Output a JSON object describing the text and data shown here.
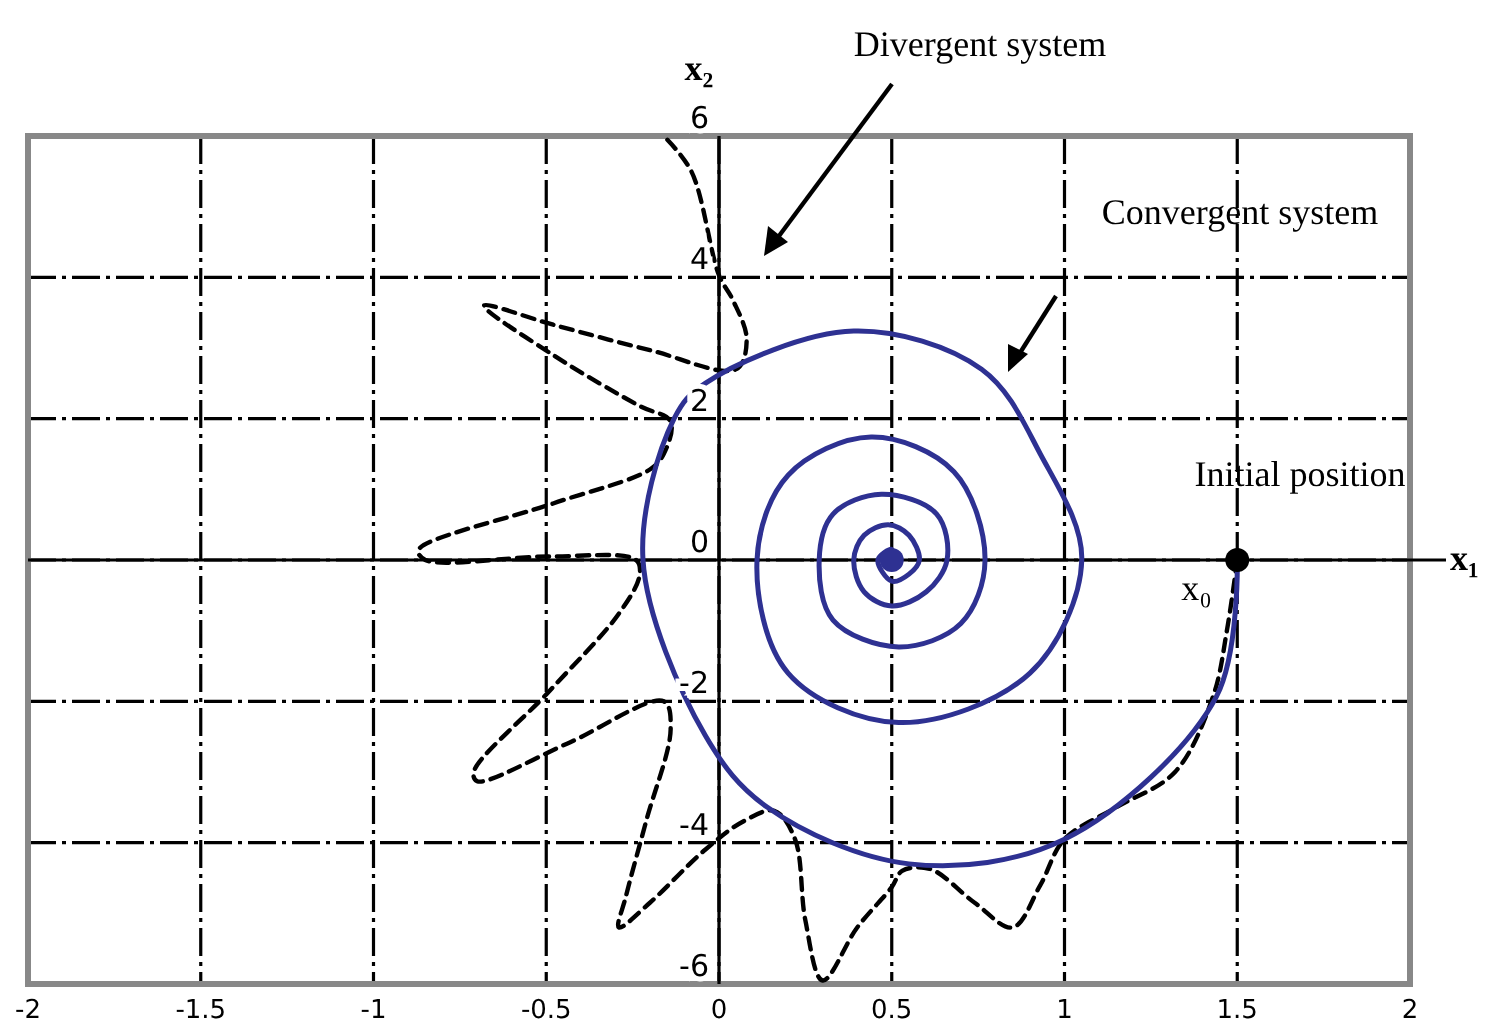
{
  "chart_data": {
    "type": "line",
    "xlabel": "x₁",
    "ylabel": "x₂",
    "xlim": [
      -2,
      2
    ],
    "ylim": [
      -6,
      6
    ],
    "xticks": [
      -2,
      -1.5,
      -1,
      -0.5,
      0,
      0.5,
      1,
      1.5,
      2
    ],
    "yticks": [
      -6,
      -4,
      -2,
      0,
      2,
      4,
      6
    ],
    "grid": true,
    "annotations": [
      "Divergent system",
      "Convergent system",
      "Initial position",
      {
        "text": "x₀",
        "x": 1.5,
        "y": 0
      }
    ],
    "series": [
      {
        "color": "#000000",
        "line_style": "dashed",
        "x": [
          1.5,
          1.47,
          1.43,
          1.32,
          1.15,
          1.0,
          0.93,
          0.85,
          0.74,
          0.61,
          0.53,
          0.5,
          0.4,
          0.3,
          0.25,
          0.22,
          0.16,
          0.07,
          -0.04,
          -0.2,
          -0.29,
          -0.27,
          -0.21,
          -0.14,
          -0.16,
          -0.44,
          -0.7,
          -0.71,
          -0.49,
          -0.29,
          -0.23,
          -0.24,
          -0.49,
          -0.85,
          -0.87,
          -0.48,
          -0.2,
          -0.16,
          -0.14,
          -0.23,
          -0.48,
          -0.68,
          -0.48,
          -0.2,
          0.05,
          0.08,
          0.04,
          0,
          -0.08,
          -0.16
        ],
        "values": [
          0,
          -1.0,
          -1.93,
          -3.0,
          -3.5,
          -3.95,
          -4.6,
          -5.2,
          -4.85,
          -4.37,
          -4.4,
          -4.63,
          -5.2,
          -5.95,
          -5.1,
          -3.95,
          -3.55,
          -3.7,
          -4.1,
          -4.85,
          -5.2,
          -4.77,
          -3.68,
          -2.4,
          -2.0,
          -2.6,
          -3.13,
          -3.0,
          -1.85,
          -0.76,
          -0.22,
          0,
          0.05,
          0,
          0.14,
          0.8,
          1.28,
          1.5,
          1.96,
          2.18,
          2.9,
          3.6,
          3.33,
          2.97,
          2.7,
          3.13,
          3.68,
          4.03,
          5.5,
          6
        ]
      },
      {
        "color": "#2e3192",
        "line_style": "solid",
        "x": [
          1.5,
          1.44,
          1.0,
          0.55,
          0.14,
          -0.04,
          -0.22,
          -0.13,
          -0.04,
          0.39,
          0.76,
          0.93,
          1.05,
          0.9,
          0.52,
          0.2,
          0.11,
          0.2,
          0.44,
          0.68,
          0.77,
          0.7,
          0.52,
          0.33,
          0.29,
          0.33,
          0.47,
          0.63,
          0.66,
          0.6,
          0.5,
          0.42,
          0.39,
          0.42,
          0.49,
          0.55,
          0.58,
          0.55,
          0.5,
          0.46,
          0.5,
          0.5
        ],
        "values": [
          0,
          -1.93,
          -3.95,
          -4.3,
          -3.5,
          -2.48,
          0,
          2.0,
          2.5,
          3.24,
          2.7,
          1.5,
          0,
          -1.6,
          -2.3,
          -1.6,
          0,
          1.2,
          1.74,
          1.25,
          0,
          -0.9,
          -1.23,
          -0.85,
          0,
          0.65,
          0.93,
          0.65,
          0,
          -0.45,
          -0.65,
          -0.45,
          0,
          0.35,
          0.5,
          0.35,
          0,
          -0.2,
          -0.3,
          0,
          0.15,
          0
        ]
      },
      {
        "type": "scatter",
        "color": "#000000",
        "marker": "circle",
        "x": [
          1.5
        ],
        "values": [
          0
        ]
      },
      {
        "type": "scatter",
        "color": "#2e3192",
        "marker": "circle",
        "x": [
          0.5
        ],
        "values": [
          0
        ]
      }
    ]
  }
}
